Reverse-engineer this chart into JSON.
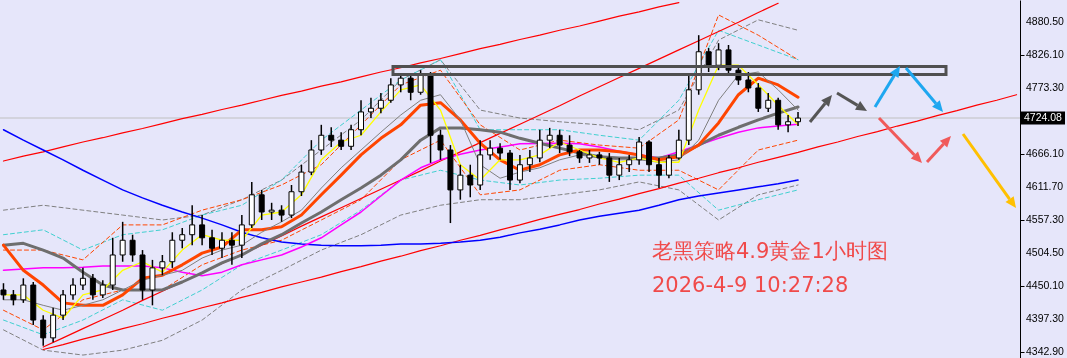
{
  "chart_data": {
    "type": "candlestick",
    "categories": [
      null,
      null,
      null,
      null,
      null,
      null,
      null,
      null,
      null,
      null,
      null,
      null,
      null,
      null,
      null,
      null,
      null,
      null,
      null,
      null,
      null,
      null,
      null,
      null,
      null,
      null,
      null,
      null,
      null,
      null,
      null,
      null,
      null,
      null,
      null,
      null,
      null,
      null,
      null,
      null,
      null,
      null,
      null,
      null,
      null,
      null,
      null,
      null,
      null,
      null,
      null,
      null,
      null,
      null,
      null,
      null,
      null,
      null,
      null,
      null,
      null,
      null,
      null,
      null,
      null,
      null,
      null,
      null,
      null,
      null,
      null,
      null,
      null,
      null,
      null,
      null,
      null,
      null,
      null,
      null,
      null,
      null,
      null,
      null,
      null,
      null,
      null,
      null,
      null,
      null,
      null,
      null,
      null,
      null,
      null,
      null,
      null,
      null,
      null,
      null,
      null,
      null,
      null
    ],
    "ohlc": [
      [
        4444,
        4455,
        4428,
        4436
      ],
      [
        4436,
        4444,
        4419,
        4428
      ],
      [
        4428,
        4463,
        4423,
        4452
      ],
      [
        4452,
        4457,
        4387,
        4395
      ],
      [
        4395,
        4403,
        4353,
        4366
      ],
      [
        4366,
        4415,
        4359,
        4403
      ],
      [
        4403,
        4444,
        4395,
        4436
      ],
      [
        4436,
        4463,
        4428,
        4452
      ],
      [
        4452,
        4480,
        4444,
        4463
      ],
      [
        4463,
        4470,
        4428,
        4436
      ],
      [
        4436,
        4460,
        4431,
        4452
      ],
      [
        4452,
        4529,
        4444,
        4501
      ],
      [
        4501,
        4555,
        4490,
        4525
      ],
      [
        4525,
        4534,
        4490,
        4501
      ],
      [
        4501,
        4509,
        4428,
        4444
      ],
      [
        4444,
        4493,
        4419,
        4480
      ],
      [
        4480,
        4501,
        4468,
        4490
      ],
      [
        4490,
        4538,
        4480,
        4525
      ],
      [
        4525,
        4545,
        4512,
        4534
      ],
      [
        4534,
        4582,
        4517,
        4550
      ],
      [
        4550,
        4566,
        4517,
        4529
      ],
      [
        4529,
        4542,
        4501,
        4512
      ],
      [
        4512,
        4538,
        4496,
        4525
      ],
      [
        4525,
        4538,
        4485,
        4517
      ],
      [
        4517,
        4566,
        4496,
        4550
      ],
      [
        4550,
        4620,
        4545,
        4599
      ],
      [
        4599,
        4607,
        4558,
        4571
      ],
      [
        4571,
        4586,
        4558,
        4574
      ],
      [
        4574,
        4582,
        4555,
        4566
      ],
      [
        4566,
        4615,
        4561,
        4604
      ],
      [
        4604,
        4648,
        4597,
        4636
      ],
      [
        4636,
        4688,
        4631,
        4672
      ],
      [
        4672,
        4713,
        4664,
        4696
      ],
      [
        4696,
        4709,
        4677,
        4688
      ],
      [
        4688,
        4701,
        4672,
        4678
      ],
      [
        4678,
        4713,
        4672,
        4705
      ],
      [
        4705,
        4753,
        4696,
        4734
      ],
      [
        4734,
        4757,
        4724,
        4740
      ],
      [
        4740,
        4765,
        4732,
        4753
      ],
      [
        4753,
        4789,
        4749,
        4778
      ],
      [
        4778,
        4797,
        4766,
        4789
      ],
      [
        4789,
        4794,
        4753,
        4766
      ],
      [
        4766,
        4802,
        4762,
        4794
      ],
      [
        4794,
        4799,
        4651,
        4696
      ],
      [
        4696,
        4705,
        4656,
        4672
      ],
      [
        4672,
        4680,
        4553,
        4607
      ],
      [
        4607,
        4648,
        4591,
        4631
      ],
      [
        4631,
        4648,
        4595,
        4615
      ],
      [
        4615,
        4688,
        4607,
        4664
      ],
      [
        4664,
        4688,
        4656,
        4675
      ],
      [
        4675,
        4683,
        4656,
        4667
      ],
      [
        4667,
        4672,
        4607,
        4623
      ],
      [
        4623,
        4664,
        4618,
        4648
      ],
      [
        4648,
        4672,
        4636,
        4659
      ],
      [
        4659,
        4705,
        4652,
        4688
      ],
      [
        4688,
        4708,
        4675,
        4696
      ],
      [
        4696,
        4705,
        4667,
        4680
      ],
      [
        4680,
        4696,
        4662,
        4669
      ],
      [
        4669,
        4672,
        4651,
        4659
      ],
      [
        4659,
        4672,
        4651,
        4664
      ],
      [
        4664,
        4669,
        4648,
        4659
      ],
      [
        4659,
        4667,
        4620,
        4631
      ],
      [
        4631,
        4659,
        4623,
        4648
      ],
      [
        4648,
        4664,
        4636,
        4656
      ],
      [
        4656,
        4693,
        4648,
        4685
      ],
      [
        4685,
        4688,
        4636,
        4648
      ],
      [
        4648,
        4659,
        4610,
        4631
      ],
      [
        4631,
        4664,
        4626,
        4659
      ],
      [
        4659,
        4705,
        4656,
        4688
      ],
      [
        4688,
        4794,
        4680,
        4770
      ],
      [
        4770,
        4859,
        4762,
        4832
      ],
      [
        4832,
        4838,
        4799,
        4810
      ],
      [
        4810,
        4846,
        4802,
        4835
      ],
      [
        4835,
        4843,
        4794,
        4802
      ],
      [
        4802,
        4810,
        4778,
        4786
      ],
      [
        4786,
        4799,
        4766,
        4773
      ],
      [
        4773,
        4781,
        4734,
        4740
      ],
      [
        4740,
        4765,
        4734,
        4753
      ],
      [
        4753,
        4757,
        4705,
        4713
      ],
      [
        4713,
        4729,
        4701,
        4718
      ],
      [
        4718,
        4734,
        4711,
        4724
      ],
      null,
      null,
      null,
      null,
      null,
      null,
      null,
      null,
      null,
      null,
      null,
      null,
      null,
      null,
      null,
      null,
      null,
      null,
      null,
      null,
      null,
      null
    ],
    "series": [
      {
        "type": "line",
        "color": "#808080",
        "line_style": "dashed",
        "values": [
          4574,
          null,
          null,
          null,
          4582,
          null,
          null,
          null,
          4574,
          null,
          null,
          null,
          4566,
          null,
          null,
          null,
          4558,
          null,
          null,
          null,
          4566,
          null,
          null,
          null,
          4591,
          null,
          null,
          null,
          4623,
          null,
          null,
          null,
          4672,
          null,
          null,
          null,
          4721,
          null,
          null,
          null,
          4786,
          null,
          null,
          null,
          4819,
          null,
          null,
          null,
          4737,
          null,
          null,
          null,
          4724,
          null,
          null,
          null,
          4718,
          null,
          null,
          null,
          4713,
          null,
          null,
          null,
          4705,
          null,
          null,
          null,
          4737,
          null,
          null,
          null,
          4851,
          null,
          null,
          null,
          4884,
          null,
          null,
          null,
          4867,
          null,
          null,
          null,
          null,
          null,
          null,
          null,
          null,
          null,
          null,
          null,
          null,
          null,
          null,
          null,
          null,
          null,
          null,
          null,
          null,
          null,
          null
        ]
      },
      {
        "type": "line",
        "color": "#808080",
        "line_style": "dashed",
        "values": [
          4379,
          null,
          null,
          null,
          4346,
          null,
          null,
          null,
          4338,
          null,
          null,
          null,
          4346,
          null,
          null,
          null,
          4362,
          null,
          null,
          null,
          4395,
          null,
          null,
          null,
          4444,
          null,
          null,
          null,
          4476,
          null,
          null,
          null,
          4509,
          null,
          null,
          null,
          4534,
          null,
          null,
          null,
          4566,
          null,
          null,
          null,
          4582,
          null,
          null,
          null,
          4591,
          null,
          null,
          null,
          4591,
          null,
          null,
          null,
          4599,
          null,
          null,
          null,
          4607,
          null,
          null,
          null,
          4620,
          null,
          null,
          null,
          4607,
          null,
          null,
          null,
          4558,
          null,
          null,
          null,
          4599,
          null,
          null,
          null,
          4615,
          null,
          null,
          null,
          null,
          null,
          null,
          null,
          null,
          null,
          null,
          null,
          null,
          null,
          null,
          null,
          null,
          null,
          null,
          null,
          null,
          null,
          null
        ]
      },
      {
        "type": "line",
        "color": "#40d0d0",
        "line_style": "dashed",
        "values": [
          4534,
          null,
          null,
          null,
          4542,
          null,
          null,
          null,
          4509,
          null,
          null,
          null,
          4534,
          null,
          null,
          null,
          4542,
          null,
          null,
          null,
          4566,
          null,
          null,
          null,
          4582,
          null,
          null,
          null,
          4623,
          null,
          null,
          null,
          4688,
          null,
          null,
          null,
          4737,
          null,
          null,
          null,
          4786,
          null,
          null,
          null,
          4819,
          null,
          null,
          null,
          4705,
          null,
          null,
          null,
          4705,
          null,
          null,
          null,
          4705,
          null,
          null,
          null,
          4696,
          null,
          null,
          null,
          4688,
          null,
          null,
          null,
          4753,
          null,
          null,
          null,
          4867,
          null,
          null,
          null,
          4843,
          null,
          null,
          null,
          4819,
          null,
          null,
          null,
          null,
          null,
          null,
          null,
          null,
          null,
          null,
          null,
          null,
          null,
          null,
          null,
          null,
          null,
          null,
          null,
          null,
          null,
          null
        ]
      },
      {
        "type": "line",
        "color": "#40d0d0",
        "line_style": "dashed",
        "values": [
          4395,
          null,
          null,
          null,
          4371,
          null,
          null,
          null,
          4395,
          null,
          null,
          null,
          4428,
          null,
          null,
          null,
          4411,
          null,
          null,
          null,
          4444,
          null,
          null,
          null,
          4485,
          null,
          null,
          null,
          4509,
          null,
          null,
          null,
          4534,
          null,
          null,
          null,
          4574,
          null,
          null,
          null,
          4623,
          null,
          null,
          null,
          4639,
          null,
          null,
          null,
          4623,
          null,
          null,
          null,
          4615,
          null,
          null,
          null,
          4623,
          null,
          null,
          null,
          4626,
          null,
          null,
          null,
          4631,
          null,
          null,
          null,
          4631,
          null,
          null,
          null,
          4574,
          null,
          null,
          null,
          4591,
          null,
          null,
          null,
          4607,
          null,
          null,
          null,
          null,
          null,
          null,
          null,
          null,
          null,
          null,
          null,
          null,
          null,
          null,
          null,
          null,
          null,
          null,
          null,
          null,
          null,
          null
        ]
      },
      {
        "type": "line",
        "color": "#ff4500",
        "line_style": "dashed",
        "values": [
          4509,
          null,
          null,
          null,
          4509,
          null,
          null,
          null,
          4493,
          null,
          null,
          null,
          4550,
          null,
          null,
          null,
          4550,
          null,
          null,
          null,
          4574,
          null,
          null,
          null,
          4591,
          null,
          null,
          null,
          4615,
          null,
          null,
          null,
          4648,
          null,
          null,
          null,
          4713,
          null,
          null,
          null,
          4778,
          null,
          null,
          null,
          4802,
          null,
          null,
          null,
          4713,
          null,
          null,
          null,
          4672,
          null,
          null,
          null,
          4688,
          null,
          null,
          null,
          4680,
          null,
          null,
          null,
          4675,
          null,
          null,
          null,
          4721,
          null,
          null,
          null,
          4892,
          null,
          null,
          null,
          4859,
          null,
          null,
          null,
          4819,
          null,
          null,
          null,
          null,
          null,
          null,
          null,
          null,
          null,
          null,
          null,
          null,
          null,
          null,
          null,
          null,
          null,
          null,
          null,
          null,
          null,
          null
        ]
      },
      {
        "type": "line",
        "color": "#ff4500",
        "line_style": "dashed",
        "values": [
          4411,
          null,
          null,
          null,
          4379,
          null,
          null,
          null,
          4428,
          null,
          null,
          null,
          4444,
          null,
          null,
          null,
          4444,
          null,
          null,
          null,
          4485,
          null,
          null,
          null,
          4509,
          null,
          null,
          null,
          4525,
          null,
          null,
          null,
          4558,
          null,
          null,
          null,
          4591,
          null,
          null,
          null,
          4656,
          null,
          null,
          null,
          4688,
          null,
          null,
          null,
          4599,
          null,
          null,
          null,
          4607,
          null,
          null,
          null,
          4639,
          null,
          null,
          null,
          4648,
          null,
          null,
          null,
          4639,
          null,
          null,
          null,
          4639,
          null,
          null,
          null,
          4607,
          null,
          null,
          null,
          4672,
          null,
          null,
          null,
          4688,
          null,
          null,
          null,
          null,
          null,
          null,
          null,
          null,
          null,
          null,
          null,
          null,
          null,
          null,
          null,
          null,
          null,
          null,
          null,
          null,
          null,
          null
        ]
      },
      {
        "type": "line",
        "color": "#ff0000",
        "values": [
          4654,
          null,
          4662,
          null,
          4669,
          null,
          4677,
          null,
          4685,
          null,
          4692,
          null,
          4700,
          null,
          4707,
          null,
          4715,
          null,
          4723,
          null,
          4730,
          null,
          4738,
          null,
          4745,
          null,
          4753,
          null,
          4761,
          null,
          4768,
          null,
          4776,
          null,
          4783,
          null,
          4791,
          null,
          4799,
          null,
          4806,
          null,
          4814,
          null,
          4821,
          null,
          4829,
          null,
          4837,
          null,
          4844,
          null,
          4852,
          null,
          4859,
          null,
          4867,
          null,
          4874,
          null,
          4882,
          null,
          4890,
          null,
          4897,
          null,
          4905,
          null,
          4912,
          null,
          null,
          null,
          null,
          null,
          null,
          null,
          null,
          null,
          null,
          null,
          null,
          null,
          null,
          null,
          null,
          null,
          null,
          null,
          null,
          null,
          null,
          null,
          null,
          null,
          null,
          null,
          null,
          null,
          null,
          null,
          null,
          null,
          null
        ]
      },
      {
        "type": "line",
        "color": "#ff0000",
        "values": [
          null,
          null,
          null,
          null,
          4351,
          null,
          4366,
          null,
          4381,
          null,
          4396,
          null,
          4411,
          null,
          4427,
          null,
          4442,
          null,
          4457,
          null,
          4472,
          null,
          4487,
          null,
          4502,
          null,
          4517,
          null,
          4532,
          null,
          4548,
          null,
          4563,
          null,
          4578,
          null,
          4593,
          null,
          4608,
          null,
          4623,
          null,
          4638,
          null,
          4654,
          null,
          4669,
          null,
          4684,
          null,
          4699,
          null,
          4714,
          null,
          4729,
          null,
          4744,
          null,
          4760,
          null,
          4775,
          null,
          4790,
          null,
          4805,
          null,
          4820,
          null,
          4835,
          null,
          4850,
          null,
          4865,
          null,
          4880,
          null,
          4896,
          null,
          4911,
          null,
          null,
          null,
          null,
          null,
          null,
          null,
          null,
          null,
          null,
          null,
          null,
          null,
          null,
          null,
          null,
          null,
          null,
          null,
          null,
          null,
          null,
          null,
          null
        ]
      },
      {
        "type": "line",
        "color": "#ff0000",
        "values": [
          null,
          null,
          null,
          null,
          4347,
          null,
          4355,
          null,
          4364,
          null,
          4372,
          null,
          4381,
          null,
          4389,
          null,
          4398,
          null,
          4406,
          null,
          4415,
          null,
          4423,
          null,
          4432,
          null,
          4440,
          null,
          4449,
          null,
          4457,
          null,
          4465,
          null,
          4474,
          null,
          4482,
          null,
          4491,
          null,
          4499,
          null,
          4508,
          null,
          4516,
          null,
          4525,
          null,
          4533,
          null,
          4542,
          null,
          4550,
          null,
          4559,
          null,
          4567,
          null,
          4575,
          null,
          4584,
          null,
          4592,
          null,
          4601,
          null,
          4609,
          null,
          4618,
          null,
          4626,
          null,
          4635,
          null,
          4643,
          null,
          4652,
          null,
          4660,
          null,
          4668,
          null,
          4677,
          null,
          4685,
          null,
          4694,
          null,
          4702,
          null,
          4711,
          null,
          4719,
          null,
          4728,
          null,
          4736,
          null,
          4745,
          null,
          4753,
          null,
          4762
        ]
      },
      {
        "type": "line",
        "color": "#0000ff",
        "values": [
          4705,
          null,
          4688,
          null,
          4672,
          null,
          4656,
          null,
          4639,
          null,
          4623,
          null,
          4607,
          null,
          4594,
          null,
          4582,
          null,
          4571,
          null,
          4561,
          null,
          4550,
          null,
          4538,
          null,
          4529,
          null,
          4522,
          null,
          4519,
          null,
          4517,
          null,
          4516,
          null,
          4516,
          null,
          4517,
          null,
          4519,
          null,
          4519,
          null,
          4520,
          null,
          4522,
          null,
          4525,
          null,
          4530,
          null,
          4537,
          null,
          4543,
          null,
          4550,
          null,
          4558,
          null,
          4564,
          null,
          4569,
          null,
          4574,
          null,
          4582,
          null,
          4591,
          null,
          4597,
          null,
          4602,
          null,
          4607,
          null,
          4612,
          null,
          4617,
          null,
          4623,
          null,
          null,
          null,
          null,
          null,
          null,
          null,
          null,
          null,
          null,
          null,
          null,
          null,
          null,
          null,
          null,
          null,
          null,
          null,
          null,
          null,
          null
        ]
      },
      {
        "type": "line",
        "color": "#ff00ff",
        "values": [
          4476,
          null,
          4478,
          null,
          4480,
          null,
          4480,
          null,
          4481,
          null,
          4483,
          null,
          4483,
          null,
          4483,
          null,
          4480,
          null,
          4473,
          null,
          4467,
          null,
          4473,
          null,
          4485,
          null,
          4493,
          null,
          4501,
          null,
          4514,
          null,
          4529,
          null,
          4550,
          null,
          4571,
          null,
          4597,
          null,
          4623,
          null,
          4643,
          null,
          4656,
          null,
          4665,
          null,
          4672,
          null,
          4677,
          null,
          4682,
          null,
          null,
          null,
          4683,
          null,
          4682,
          null,
          4677,
          null,
          4670,
          null,
          null,
          null,
          4659,
          null,
          4669,
          null,
          4680,
          null,
          4691,
          null,
          4701,
          null,
          4708,
          null,
          4711,
          null,
          4714,
          null,
          null,
          null,
          null,
          null,
          null,
          null,
          null,
          null,
          null,
          null,
          null,
          null,
          null,
          null,
          null,
          null,
          null,
          null,
          null,
          null,
          null
        ]
      },
      {
        "type": "line",
        "color": "#6e6e6e",
        "values": [
          4517,
          null,
          4520,
          null,
          4509,
          null,
          4496,
          null,
          4473,
          null,
          4452,
          null,
          4444,
          null,
          4444,
          null,
          4444,
          null,
          4457,
          null,
          4472,
          null,
          4488,
          null,
          4501,
          null,
          4519,
          null,
          4534,
          null,
          4553,
          null,
          4571,
          null,
          4591,
          null,
          4610,
          null,
          4631,
          null,
          4656,
          null,
          4688,
          null,
          4708,
          null,
          4708,
          null,
          4705,
          null,
          4701,
          null,
          4691,
          null,
          4683,
          null,
          4675,
          null,
          4667,
          null,
          4661,
          null,
          4659,
          null,
          4659,
          null,
          4659,
          null,
          4664,
          null,
          4680,
          null,
          4696,
          null,
          4709,
          null,
          4721,
          null,
          4732,
          null,
          4742,
          null,
          null,
          null,
          null,
          null,
          null,
          null,
          null,
          null,
          null,
          null,
          null,
          null,
          null,
          null,
          null,
          null,
          null,
          null,
          null,
          null,
          null
        ]
      },
      {
        "type": "line",
        "color": "#ff4500",
        "values": [
          4517,
          null,
          4476,
          null,
          4452,
          null,
          4423,
          null,
          4419,
          null,
          4419,
          null,
          4436,
          null,
          4463,
          null,
          4468,
          null,
          4485,
          null,
          4504,
          null,
          4514,
          null,
          4542,
          null,
          4542,
          null,
          4547,
          null,
          4566,
          null,
          4599,
          null,
          4631,
          null,
          4664,
          null,
          4691,
          null,
          4713,
          null,
          4745,
          null,
          4749,
          null,
          4721,
          null,
          4683,
          null,
          4656,
          null,
          4639,
          null,
          4648,
          null,
          4664,
          null,
          4672,
          null,
          4672,
          null,
          4669,
          null,
          4664,
          null,
          4656,
          null,
          4661,
          null,
          4680,
          null,
          4716,
          null,
          4762,
          null,
          4789,
          null,
          4778,
          null,
          4758,
          null,
          null,
          null,
          null,
          null,
          null,
          null,
          null,
          null,
          null,
          null,
          null,
          null,
          null,
          null,
          null,
          null,
          null,
          null,
          null,
          null,
          null
        ]
      },
      {
        "type": "line",
        "color": "#808080",
        "values": [
          4428,
          null,
          4428,
          null,
          4419,
          null,
          4411,
          null,
          4419,
          null,
          4428,
          null,
          4444,
          null,
          4460,
          null,
          4468,
          null,
          4476,
          null,
          4496,
          null,
          4509,
          null,
          4517,
          null,
          4538,
          null,
          4555,
          null,
          4574,
          null,
          4610,
          null,
          4643,
          null,
          4672,
          null,
          4701,
          null,
          4729,
          null,
          4753,
          null,
          4762,
          null,
          4721,
          null,
          4648,
          null,
          4626,
          null,
          4636,
          null,
          4643,
          null,
          4656,
          null,
          4664,
          null,
          4659,
          null,
          4656,
          null,
          4656,
          null,
          4652,
          null,
          4656,
          null,
          4688,
          null,
          4753,
          null,
          4794,
          null,
          4799,
          null,
          4770,
          null,
          4737,
          null,
          null,
          null,
          null,
          null,
          null,
          null,
          null,
          null,
          null,
          null,
          null,
          null,
          null,
          null,
          null,
          null,
          null,
          null,
          null,
          null,
          null
        ]
      },
      {
        "type": "line",
        "color": "#ffff00",
        "values": [
          4436,
          null,
          4436,
          null,
          4411,
          null,
          4398,
          null,
          4436,
          null,
          4444,
          null,
          4476,
          null,
          4490,
          null,
          4473,
          null,
          4509,
          null,
          4534,
          null,
          4525,
          null,
          4525,
          null,
          4566,
          null,
          4571,
          null,
          4599,
          null,
          4656,
          null,
          4685,
          null,
          4696,
          null,
          4734,
          null,
          4770,
          null,
          4778,
          null,
          4737,
          null,
          4648,
          null,
          4623,
          null,
          4656,
          null,
          4656,
          null,
          4664,
          null,
          4685,
          null,
          4672,
          null,
          4659,
          null,
          4652,
          null,
          4659,
          null,
          4652,
          null,
          4652,
          null,
          4737,
          null,
          4810,
          null,
          4810,
          null,
          4778,
          null,
          4745,
          null,
          4713,
          null,
          null,
          null,
          null,
          null,
          null,
          null,
          null,
          null,
          null,
          null,
          null,
          null,
          null,
          null,
          null,
          null,
          null,
          null,
          null,
          null,
          null
        ]
      }
    ],
    "ylim": [
      4333.2,
      4916.3
    ],
    "yticks": [
      {
        "value": 4880.5,
        "label": "4880.50"
      },
      {
        "value": 4826.1,
        "label": "4826.10"
      },
      {
        "value": 4773.3,
        "label": "4773.30"
      },
      {
        "value": 4666.1,
        "label": "4666.10"
      },
      {
        "value": 4611.7,
        "label": "4611.70"
      },
      {
        "value": 4557.3,
        "label": "4557.30"
      },
      {
        "value": 4504.5,
        "label": "4504.50"
      },
      {
        "value": 4450.1,
        "label": "4450.10"
      },
      {
        "value": 4397.3,
        "label": "4397.30"
      },
      {
        "value": 4342.9,
        "label": "4342.90"
      }
    ],
    "ref_lines": [
      {
        "axis": "y",
        "value": 4724.08,
        "label": "4724.08",
        "color": "#c0c0c0"
      }
    ],
    "annotations": [
      "老黑策略4.9黄金1小时图",
      "2026-4-9 10:27:28"
    ],
    "tick_labels": "y"
  }
}
